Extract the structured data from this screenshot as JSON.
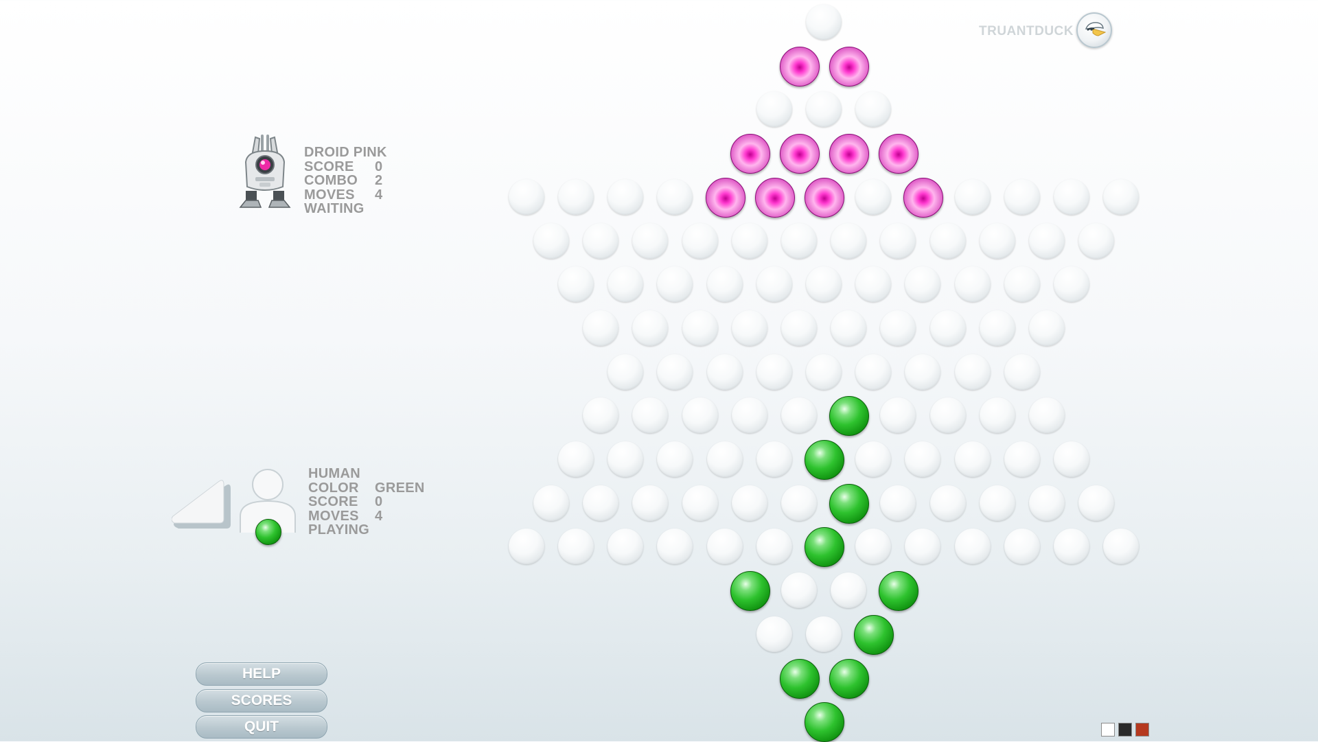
{
  "brand": {
    "name": "TRUANTDUCK",
    "logo_icon": "duck-logo-icon"
  },
  "droid": {
    "avatar_icon": "robot-droid-icon",
    "lines": [
      {
        "label": "DROID PINK",
        "value": ""
      },
      {
        "label": "SCORE",
        "value": "0"
      },
      {
        "label": "COMBO",
        "value": "2"
      },
      {
        "label": "MOVES",
        "value": "4"
      },
      {
        "label": "WAITING",
        "value": ""
      }
    ]
  },
  "human": {
    "avatar_icon": "human-avatar-icon",
    "lines": [
      {
        "label": "HUMAN",
        "value": ""
      },
      {
        "label": "COLOR",
        "value": "GREEN"
      },
      {
        "label": "SCORE",
        "value": "0"
      },
      {
        "label": "MOVES",
        "value": "4"
      },
      {
        "label": "PLAYING",
        "value": ""
      }
    ]
  },
  "menu": {
    "help": "HELP",
    "scores": "SCORES",
    "quit": "QUIT"
  },
  "colors": {
    "green_piece": "#1fb51f",
    "pink_piece": "#ff40cf",
    "swatches": [
      "#ffffff",
      "#2a2a2a",
      "#b5391f"
    ]
  },
  "board": {
    "row_lengths": [
      1,
      2,
      3,
      4,
      13,
      12,
      11,
      10,
      9,
      10,
      11,
      12,
      13,
      4,
      3,
      2,
      1
    ],
    "pink_pieces": [
      [
        1,
        0
      ],
      [
        1,
        1
      ],
      [
        3,
        0
      ],
      [
        3,
        1
      ],
      [
        3,
        2
      ],
      [
        3,
        3
      ],
      [
        4,
        4
      ],
      [
        4,
        5
      ],
      [
        4,
        6
      ],
      [
        4,
        8
      ]
    ],
    "green_pieces": [
      [
        9,
        5
      ],
      [
        10,
        5
      ],
      [
        11,
        6
      ],
      [
        12,
        6
      ],
      [
        13,
        0
      ],
      [
        13,
        3
      ],
      [
        14,
        2
      ],
      [
        15,
        0
      ],
      [
        15,
        1
      ],
      [
        16,
        0
      ]
    ]
  }
}
